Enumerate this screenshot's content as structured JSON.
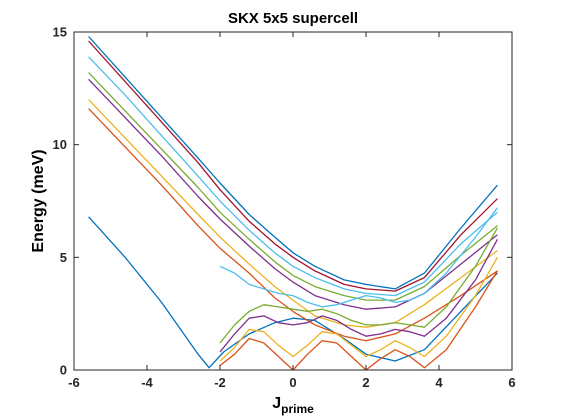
{
  "chart_data": {
    "type": "line",
    "title": "SKX 5x5 supercell",
    "xlabel": {
      "base": "J",
      "subscript": "prime"
    },
    "ylabel": "Energy (meV)",
    "xlim": [
      -6,
      6
    ],
    "ylim": [
      0,
      15
    ],
    "xticks": [
      -6,
      -4,
      -2,
      0,
      2,
      4,
      6
    ],
    "yticks": [
      0,
      5,
      10,
      15
    ],
    "grid": false,
    "legend": "none",
    "x_range_plotted": [
      -5.6,
      5.6
    ],
    "series_count_note": "dense bundle of many dispersion curves (multicolored)",
    "colors": [
      "#0072BD",
      "#D95319",
      "#EDB120",
      "#7E2F8E",
      "#77AC30",
      "#4DBEEE",
      "#A2142F"
    ],
    "series": [
      {
        "name": "",
        "x": [
          -5.6,
          -4.6,
          -3.6,
          -2.6,
          -2.3,
          -1.9,
          -1.2,
          -0.5,
          0.0,
          0.6,
          1.4,
          2.0,
          2.8,
          3.6,
          4.6,
          5.6
        ],
        "values": [
          6.8,
          5.0,
          3.0,
          0.7,
          0.1,
          0.8,
          1.6,
          2.1,
          2.3,
          2.2,
          1.4,
          0.7,
          0.4,
          0.9,
          2.6,
          4.3
        ]
      },
      {
        "name": "",
        "x": [
          -5.6,
          -4.6,
          -3.6,
          -2.6,
          -2.0,
          -1.2,
          -0.5,
          0.0,
          0.6,
          1.4,
          2.0,
          2.8,
          3.6,
          4.6,
          5.6
        ],
        "values": [
          11.6,
          9.9,
          8.2,
          6.4,
          5.4,
          4.3,
          3.2,
          2.6,
          2.0,
          1.5,
          1.3,
          1.6,
          2.3,
          3.3,
          4.4
        ]
      },
      {
        "name": "",
        "x": [
          -5.6,
          -4.6,
          -3.6,
          -2.6,
          -2.0,
          -1.2,
          -0.5,
          0.0,
          0.6,
          1.4,
          2.0,
          2.8,
          3.6,
          4.6,
          5.6
        ],
        "values": [
          12.0,
          10.3,
          8.6,
          6.9,
          5.9,
          4.7,
          3.7,
          3.1,
          2.4,
          2.0,
          1.9,
          2.1,
          2.9,
          4.1,
          5.3
        ]
      },
      {
        "name": "",
        "x": [
          -5.6,
          -4.6,
          -3.6,
          -2.6,
          -2.0,
          -1.2,
          -0.5,
          0.0,
          0.6,
          1.4,
          2.0,
          2.8,
          3.6,
          4.6,
          5.6
        ],
        "values": [
          12.9,
          11.2,
          9.5,
          7.7,
          6.7,
          5.5,
          4.5,
          3.9,
          3.3,
          2.9,
          2.7,
          2.8,
          3.4,
          4.7,
          6.0
        ]
      },
      {
        "name": "",
        "x": [
          -5.6,
          -4.6,
          -3.6,
          -2.6,
          -2.0,
          -1.2,
          -0.5,
          0.0,
          0.6,
          1.4,
          2.0,
          2.8,
          3.6,
          4.6,
          5.6
        ],
        "values": [
          13.2,
          11.5,
          9.8,
          8.1,
          7.0,
          5.8,
          4.8,
          4.2,
          3.7,
          3.3,
          3.1,
          3.1,
          3.7,
          5.1,
          6.4
        ]
      },
      {
        "name": "",
        "x": [
          -5.6,
          -4.6,
          -3.6,
          -2.6,
          -2.0,
          -1.2,
          -0.5,
          0.0,
          0.6,
          1.4,
          2.0,
          2.8,
          3.6,
          4.6,
          5.6
        ],
        "values": [
          13.9,
          12.2,
          10.4,
          8.6,
          7.5,
          6.2,
          5.2,
          4.6,
          4.1,
          3.6,
          3.4,
          3.3,
          3.9,
          5.6,
          7.0
        ]
      },
      {
        "name": "",
        "x": [
          -5.6,
          -4.6,
          -3.6,
          -2.6,
          -2.0,
          -1.2,
          -0.5,
          0.0,
          0.6,
          1.4,
          2.0,
          2.8,
          3.6,
          4.6,
          5.6
        ],
        "values": [
          14.6,
          12.8,
          11.0,
          9.2,
          8.0,
          6.6,
          5.6,
          5.0,
          4.4,
          3.8,
          3.6,
          3.5,
          4.1,
          6.0,
          7.6
        ]
      },
      {
        "name": "",
        "x": [
          -5.6,
          -4.6,
          -3.6,
          -2.6,
          -2.0,
          -1.2,
          -0.5,
          0.0,
          0.6,
          1.4,
          2.0,
          2.8,
          3.6,
          4.6,
          5.6
        ],
        "values": [
          14.8,
          13.0,
          11.2,
          9.4,
          8.3,
          6.9,
          5.9,
          5.2,
          4.6,
          4.0,
          3.8,
          3.6,
          4.3,
          6.3,
          8.2
        ]
      },
      {
        "name": "",
        "x": [
          -2.0,
          -1.6,
          -1.2,
          -0.8,
          -0.4,
          0.0,
          0.4,
          0.8,
          1.2,
          1.6,
          2.0,
          2.4,
          2.8,
          3.2,
          3.6,
          4.2,
          5.0,
          5.6
        ],
        "values": [
          0.2,
          0.7,
          1.4,
          1.2,
          0.6,
          0.0,
          0.7,
          1.3,
          1.2,
          0.6,
          0.0,
          0.5,
          0.9,
          0.6,
          0.1,
          0.9,
          2.8,
          4.4
        ]
      },
      {
        "name": "",
        "x": [
          -2.0,
          -1.6,
          -1.2,
          -0.8,
          -0.4,
          0.0,
          0.4,
          0.8,
          1.2,
          1.6,
          2.0,
          2.4,
          2.8,
          3.2,
          3.6,
          4.2,
          5.0,
          5.6
        ],
        "values": [
          0.4,
          1.0,
          1.8,
          1.7,
          1.1,
          0.6,
          1.1,
          1.7,
          1.6,
          1.1,
          0.6,
          0.9,
          1.3,
          1.0,
          0.6,
          1.5,
          3.3,
          5.0
        ]
      },
      {
        "name": "",
        "x": [
          -2.0,
          -1.6,
          -1.2,
          -0.8,
          -0.4,
          0.0,
          0.4,
          0.8,
          1.2,
          1.6,
          2.0,
          2.4,
          2.8,
          3.2,
          3.6,
          4.2,
          5.0,
          5.6
        ],
        "values": [
          0.8,
          1.6,
          2.3,
          2.4,
          2.1,
          2.0,
          2.1,
          2.4,
          2.2,
          1.8,
          1.5,
          1.6,
          1.8,
          1.7,
          1.5,
          2.3,
          4.0,
          5.8
        ]
      },
      {
        "name": "",
        "x": [
          -2.0,
          -1.6,
          -1.2,
          -0.8,
          -0.4,
          0.0,
          0.4,
          0.8,
          1.2,
          1.6,
          2.0,
          2.4,
          2.8,
          3.2,
          3.6,
          4.2,
          5.0,
          5.6
        ],
        "values": [
          1.2,
          2.0,
          2.6,
          2.9,
          2.8,
          2.7,
          2.6,
          2.7,
          2.5,
          2.2,
          2.0,
          2.0,
          2.1,
          2.0,
          1.9,
          2.8,
          4.6,
          6.3
        ]
      },
      {
        "name": "",
        "x": [
          -2.0,
          -1.6,
          -1.2,
          -0.8,
          -0.4,
          0.0,
          0.4,
          0.8,
          1.2,
          1.6,
          2.0,
          2.4,
          2.8,
          3.2,
          3.6,
          4.2,
          5.0,
          5.6
        ],
        "values": [
          4.6,
          4.3,
          3.8,
          3.6,
          3.4,
          3.3,
          3.0,
          2.8,
          2.9,
          3.1,
          3.3,
          3.2,
          3.0,
          3.1,
          3.4,
          4.3,
          5.9,
          7.2
        ]
      }
    ]
  }
}
